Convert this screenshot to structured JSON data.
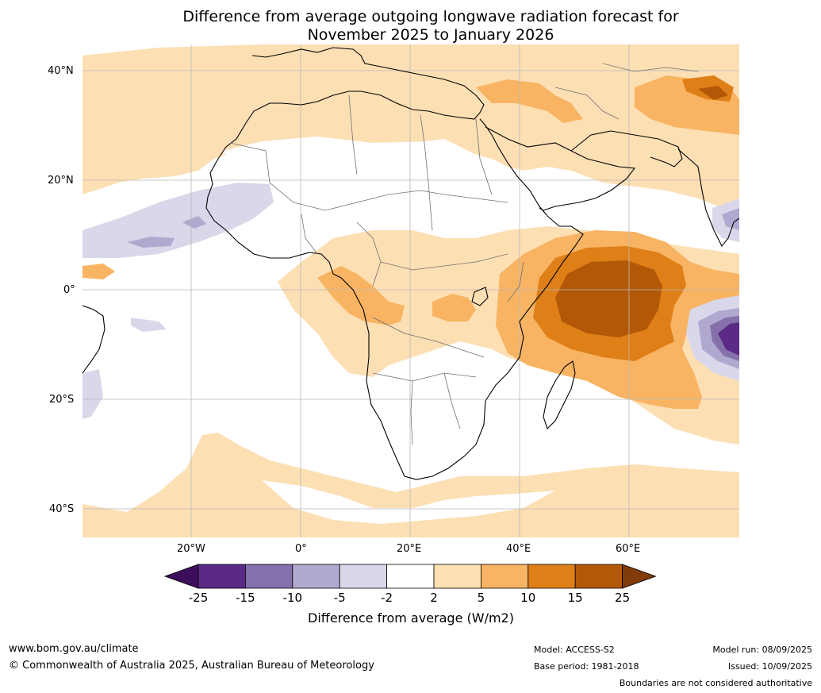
{
  "title_line1": "Difference from average outgoing longwave radiation forecast for",
  "title_line2": "November 2025 to January 2026",
  "lat_ticks": [
    "40°N",
    "20°N",
    "0°",
    "20°S",
    "40°S"
  ],
  "lon_ticks": [
    "20°W",
    "0°",
    "20°E",
    "40°E",
    "60°E"
  ],
  "colorbar": {
    "labels": [
      "-25",
      "-15",
      "-10",
      "-5",
      "-2",
      "2",
      "5",
      "10",
      "15",
      "25"
    ],
    "colors": [
      "#3d0e5c",
      "#5a2a86",
      "#8470aa",
      "#b1a8cf",
      "#d8d8ea",
      "#ffffff",
      "#fddfb4",
      "#f8b462",
      "#de7f18",
      "#b35806",
      "#7f3b08"
    ],
    "title": "Difference from average (W/m2)"
  },
  "footer": {
    "website": "www.bom.gov.au/climate",
    "copyright": "© Commonwealth of Australia 2025, Australian Bureau of Meteorology",
    "model": "Model: ACCESS-S2",
    "base_period": "Base period: 1981-2018",
    "model_run": "Model run: 08/09/2025",
    "issued": "Issued: 10/09/2025",
    "disclaimer": "Boundaries are not considered authoritative"
  }
}
